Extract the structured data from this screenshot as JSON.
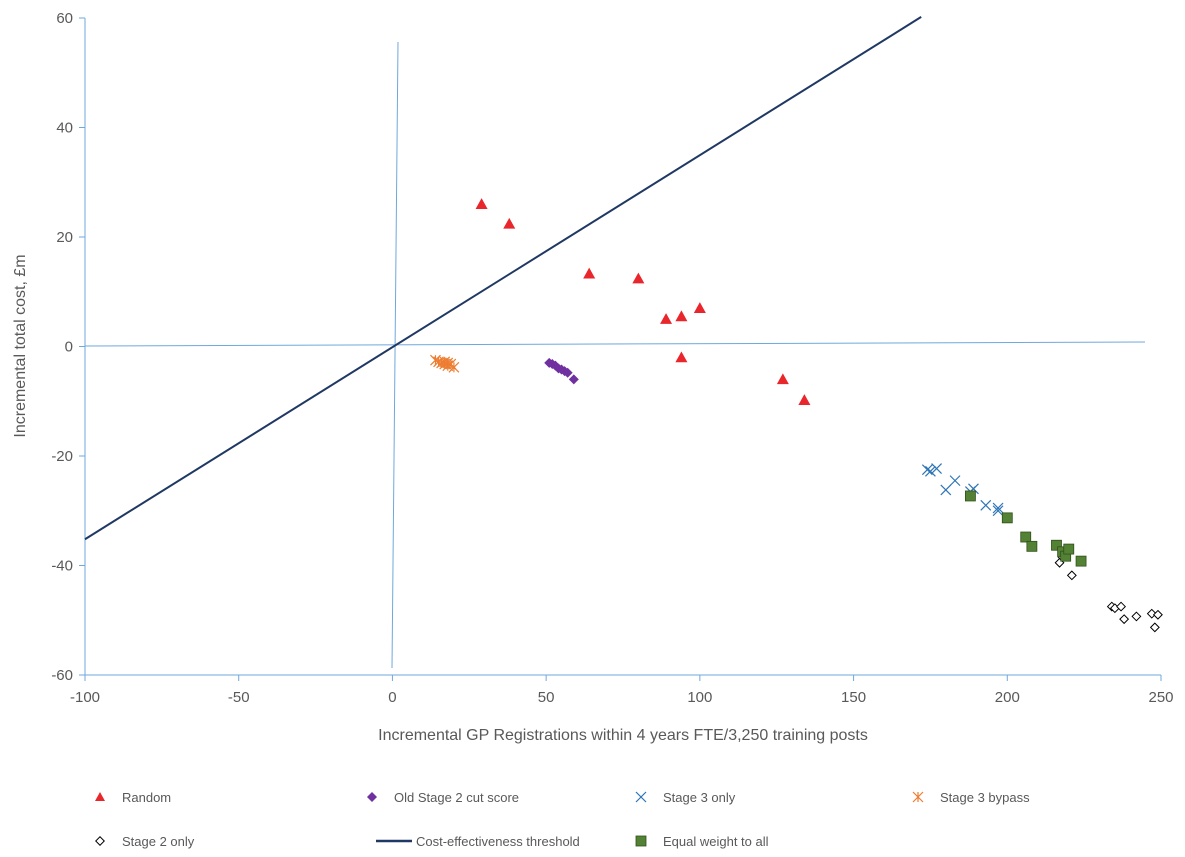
{
  "chart_data": {
    "type": "scatter",
    "xlabel": "Incremental GP Registrations within 4 years FTE/3,250 training posts",
    "ylabel": "Incremental total cost, £m",
    "xlim": [
      -100,
      250
    ],
    "ylim": [
      -60,
      60
    ],
    "x_ticks": [
      "-100",
      "-50",
      "0",
      "50",
      "100",
      "150",
      "200",
      "250"
    ],
    "y_ticks": [
      "60",
      "40",
      "20",
      "0",
      "-20",
      "-40",
      "-60"
    ],
    "grid": false,
    "legend_position": "bottom",
    "colors": {
      "axis": "#6fa8dc",
      "threshold": "#1f3864",
      "random": "#e8262b",
      "old_stage2": "#7030a0",
      "stage3_only": "#2e75b6",
      "stage3_bypass": "#ed7d31",
      "stage2_only": "#000000",
      "equal_weight": "#548235",
      "text": "#595959"
    },
    "threshold_line": {
      "name": "Cost-effectiveness threshold",
      "points": [
        [
          -100,
          -35.2
        ],
        [
          172,
          60.2
        ]
      ]
    },
    "series": [
      {
        "name": "Random",
        "marker": "triangle",
        "points": [
          [
            29,
            26
          ],
          [
            38,
            22.4
          ],
          [
            64,
            13.3
          ],
          [
            80,
            12.4
          ],
          [
            89,
            5
          ],
          [
            94,
            5.5
          ],
          [
            100,
            7
          ],
          [
            94,
            -2
          ],
          [
            127,
            -6
          ],
          [
            134,
            -9.8
          ]
        ]
      },
      {
        "name": "Old Stage 2 cut score",
        "marker": "diamond",
        "points": [
          [
            51,
            -3
          ],
          [
            52,
            -3.2
          ],
          [
            53,
            -3.5
          ],
          [
            54,
            -4
          ],
          [
            55,
            -4.2
          ],
          [
            56,
            -4.5
          ],
          [
            57,
            -4.8
          ],
          [
            59,
            -6
          ]
        ]
      },
      {
        "name": "Stage 3 only",
        "marker": "x",
        "points": [
          [
            174,
            -22.5
          ],
          [
            175,
            -22.8
          ],
          [
            177,
            -22.3
          ],
          [
            180,
            -26.2
          ],
          [
            183,
            -24.5
          ],
          [
            188,
            -26.5
          ],
          [
            189,
            -26
          ],
          [
            193,
            -29
          ],
          [
            197,
            -29.5
          ],
          [
            197,
            -30
          ]
        ]
      },
      {
        "name": "Stage 3 bypass",
        "marker": "star",
        "points": [
          [
            14,
            -2.5
          ],
          [
            15,
            -2.8
          ],
          [
            16,
            -3
          ],
          [
            17,
            -2.8
          ],
          [
            17,
            -3.2
          ],
          [
            18,
            -3
          ],
          [
            18,
            -3.5
          ],
          [
            19,
            -3.2
          ],
          [
            20,
            -3.8
          ]
        ]
      },
      {
        "name": "Stage 2 only",
        "marker": "open-diamond",
        "points": [
          [
            217,
            -39.5
          ],
          [
            218,
            -38.5
          ],
          [
            221,
            -41.8
          ],
          [
            234,
            -47.5
          ],
          [
            235,
            -47.8
          ],
          [
            237,
            -47.5
          ],
          [
            238,
            -49.8
          ],
          [
            242,
            -49.3
          ],
          [
            247,
            -48.8
          ],
          [
            248,
            -51.3
          ],
          [
            249,
            -49
          ]
        ]
      },
      {
        "name": "Equal weight to all",
        "marker": "square",
        "points": [
          [
            188,
            -27.3
          ],
          [
            200,
            -31.3
          ],
          [
            206,
            -34.8
          ],
          [
            208,
            -36.5
          ],
          [
            216,
            -36.3
          ],
          [
            218,
            -37.5
          ],
          [
            219,
            -38.3
          ],
          [
            220,
            -37
          ],
          [
            224,
            -39.2
          ]
        ]
      }
    ],
    "legend": [
      {
        "label": "Random",
        "marker": "triangle",
        "color": "#e8262b"
      },
      {
        "label": "Old Stage 2 cut score",
        "marker": "diamond",
        "color": "#7030a0"
      },
      {
        "label": "Stage 3 only",
        "marker": "x",
        "color": "#2e75b6"
      },
      {
        "label": "Stage 3 bypass",
        "marker": "star",
        "color": "#ed7d31"
      },
      {
        "label": "Stage 2 only",
        "marker": "open-diamond",
        "color": "#000000"
      },
      {
        "label": "Cost-effectiveness threshold",
        "marker": "line",
        "color": "#1f3864"
      },
      {
        "label": "Equal weight to all",
        "marker": "square",
        "color": "#548235"
      }
    ]
  }
}
